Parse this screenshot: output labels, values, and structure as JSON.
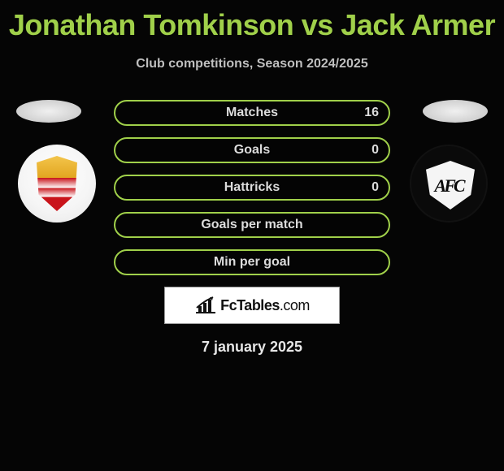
{
  "title": "Jonathan Tomkinson vs Jack Armer",
  "subtitle": "Club competitions, Season 2024/2025",
  "date": "7 january 2025",
  "brand": {
    "name": "FcTables",
    "suffix": ".com"
  },
  "colors": {
    "title": "#a0d04a",
    "bar_border": "#a0d04a",
    "text_muted": "#dcdcdc",
    "background": "#050505"
  },
  "stats": [
    {
      "label": "Matches",
      "right_value": "16",
      "right_visible": true
    },
    {
      "label": "Goals",
      "right_value": "0",
      "right_visible": true
    },
    {
      "label": "Hattricks",
      "right_value": "0",
      "right_visible": true
    },
    {
      "label": "Goals per match",
      "right_value": "",
      "right_visible": false
    },
    {
      "label": "Min per goal",
      "right_value": "",
      "right_visible": false
    }
  ]
}
